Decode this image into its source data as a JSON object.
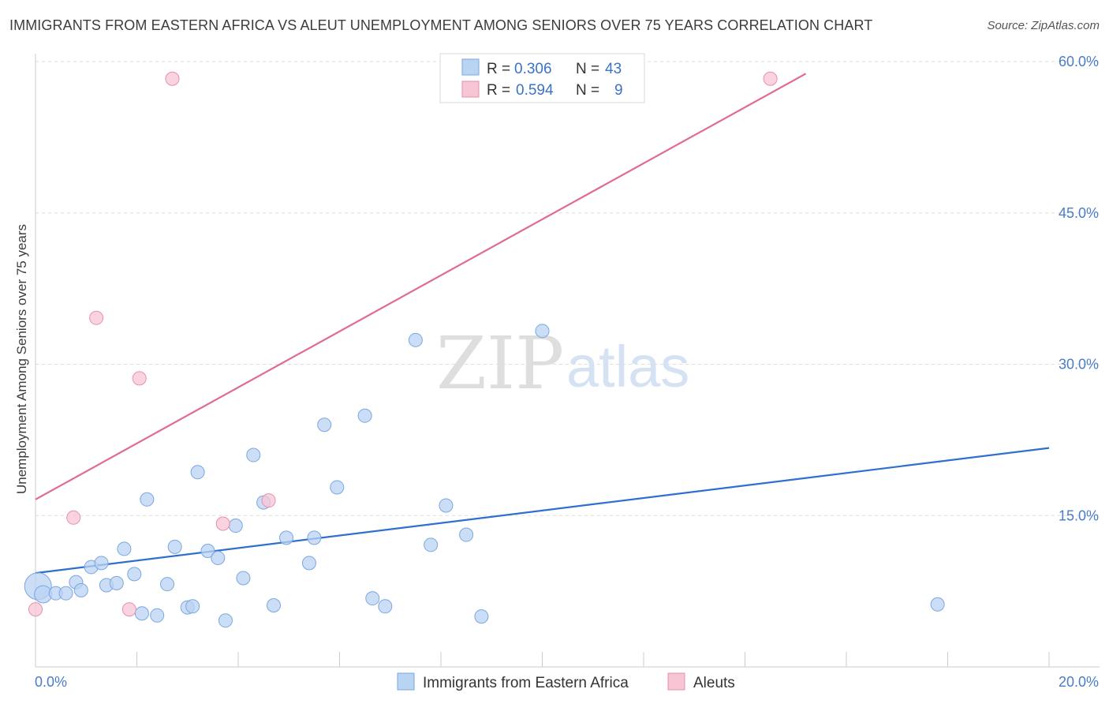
{
  "title": "IMMIGRANTS FROM EASTERN AFRICA VS ALEUT UNEMPLOYMENT AMONG SENIORS OVER 75 YEARS CORRELATION CHART",
  "source": "Source: ZipAtlas.com",
  "watermark": {
    "zip": "ZIP",
    "atlas": "atlas"
  },
  "colors": {
    "blue_fill": "#b9d3f3",
    "blue_stroke": "#7aa7e0",
    "blue_line": "#2e6fcf",
    "pink_fill": "#f7c6d5",
    "pink_stroke": "#e98fac",
    "pink_line": "#e06b92",
    "axis_text": "#4a7cc7",
    "grid": "#dddddd"
  },
  "legend": {
    "rows": [
      {
        "r_label": "R =",
        "r_value": "0.306",
        "n_label": "N =",
        "n_value": "43"
      },
      {
        "r_label": "R =",
        "r_value": "0.594",
        "n_label": "N =",
        "n_value": "9"
      }
    ]
  },
  "chart_data": {
    "type": "scatter",
    "title": "IMMIGRANTS FROM EASTERN AFRICA VS ALEUT UNEMPLOYMENT AMONG SENIORS OVER 75 YEARS CORRELATION CHART",
    "xlabel": "",
    "ylabel": "Unemployment Among Seniors over 75 years",
    "xlim": [
      0,
      20
    ],
    "ylim": [
      0,
      60
    ],
    "x_tick_labels": [
      "0.0%",
      "20.0%"
    ],
    "y_ticks": [
      15,
      30,
      45,
      60
    ],
    "y_tick_labels": [
      "15.0%",
      "30.0%",
      "45.0%",
      "60.0%"
    ],
    "grid": true,
    "legend_position": "top-center",
    "series": [
      {
        "name": "Immigrants from Eastern Africa",
        "color": "#b9d3f3",
        "points": [
          [
            0.05,
            8.0
          ],
          [
            0.15,
            7.2
          ],
          [
            0.4,
            7.3
          ],
          [
            0.6,
            7.3
          ],
          [
            0.8,
            8.4
          ],
          [
            0.9,
            7.6
          ],
          [
            1.1,
            9.9
          ],
          [
            1.3,
            10.3
          ],
          [
            1.4,
            8.1
          ],
          [
            1.6,
            8.3
          ],
          [
            1.75,
            11.7
          ],
          [
            1.95,
            9.2
          ],
          [
            2.1,
            5.3
          ],
          [
            2.2,
            16.6
          ],
          [
            2.4,
            5.1
          ],
          [
            2.6,
            8.2
          ],
          [
            2.75,
            11.9
          ],
          [
            3.0,
            5.9
          ],
          [
            3.1,
            6.0
          ],
          [
            3.2,
            19.3
          ],
          [
            3.4,
            11.5
          ],
          [
            3.6,
            10.8
          ],
          [
            3.75,
            4.6
          ],
          [
            3.95,
            14.0
          ],
          [
            4.1,
            8.8
          ],
          [
            4.3,
            21.0
          ],
          [
            4.5,
            16.3
          ],
          [
            4.7,
            6.1
          ],
          [
            4.95,
            12.8
          ],
          [
            5.4,
            10.3
          ],
          [
            5.5,
            12.8
          ],
          [
            5.7,
            24.0
          ],
          [
            5.95,
            17.8
          ],
          [
            6.5,
            24.9
          ],
          [
            6.65,
            6.8
          ],
          [
            6.9,
            6.0
          ],
          [
            7.5,
            32.4
          ],
          [
            7.8,
            12.1
          ],
          [
            8.1,
            16.0
          ],
          [
            8.5,
            13.1
          ],
          [
            8.8,
            5.0
          ],
          [
            10.0,
            33.3
          ],
          [
            17.8,
            6.2
          ]
        ]
      },
      {
        "name": "Aleuts",
        "color": "#f7c6d5",
        "points": [
          [
            0.0,
            5.7
          ],
          [
            0.75,
            14.8
          ],
          [
            1.2,
            34.6
          ],
          [
            1.85,
            5.7
          ],
          [
            2.05,
            28.6
          ],
          [
            2.7,
            58.3
          ],
          [
            3.7,
            14.2
          ],
          [
            4.6,
            16.5
          ],
          [
            14.5,
            58.3
          ]
        ]
      }
    ],
    "trendlines": [
      {
        "series": "Immigrants from Eastern Africa",
        "x": [
          0,
          20
        ],
        "y": [
          9.3,
          21.7
        ]
      },
      {
        "series": "Aleuts",
        "x": [
          0,
          15.2
        ],
        "y": [
          16.6,
          58.8
        ]
      }
    ]
  },
  "bottom_legend": [
    "Immigrants from Eastern Africa",
    "Aleuts"
  ]
}
